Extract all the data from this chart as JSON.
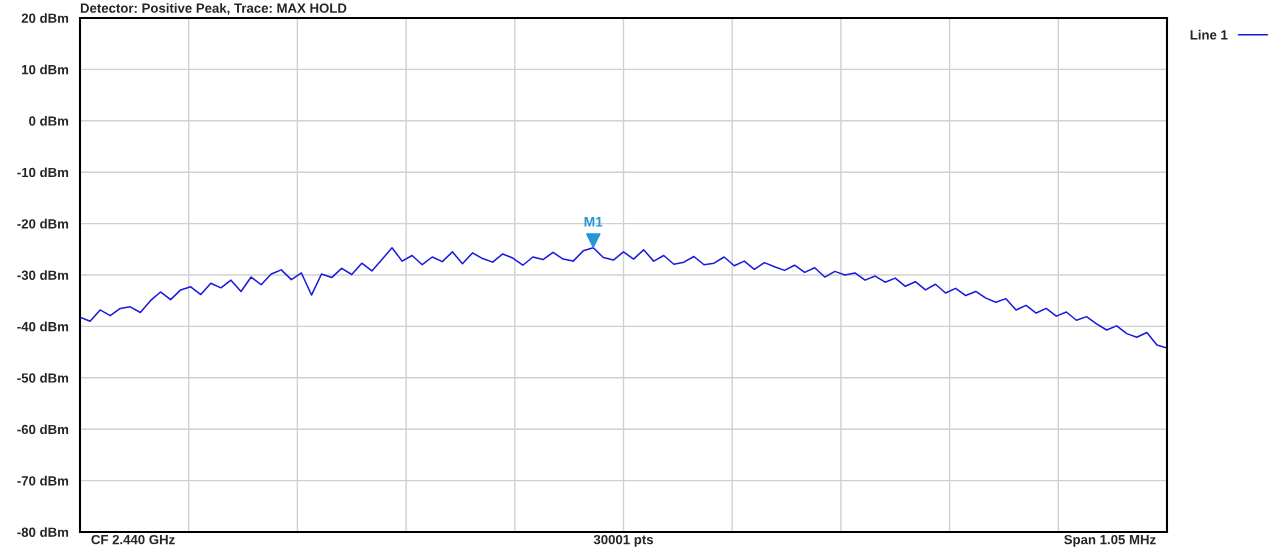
{
  "chart_data": {
    "type": "line",
    "title": "Detector: Positive Peak, Trace: MAX HOLD",
    "categories": [
      null,
      null,
      null,
      null,
      null,
      null,
      null,
      null,
      null,
      null,
      null,
      null,
      null,
      null,
      null,
      null,
      null,
      null,
      null,
      null,
      null,
      null,
      null,
      null,
      null,
      null,
      null,
      null,
      null,
      null,
      null,
      null,
      null,
      null,
      null,
      null,
      null,
      null,
      null,
      null,
      null,
      null,
      null,
      null,
      null,
      null,
      null,
      null,
      null,
      null,
      null,
      null,
      null,
      null,
      null,
      null,
      null,
      null,
      null,
      null,
      null,
      null,
      null,
      null,
      null,
      null,
      null,
      null,
      null,
      null,
      null,
      null,
      null,
      null,
      null,
      null,
      null,
      null,
      null,
      null,
      null,
      null,
      null,
      null,
      null,
      null,
      null,
      null,
      null,
      null,
      null,
      null,
      null,
      null,
      null,
      null,
      null,
      null,
      null,
      null,
      null,
      null,
      null,
      null,
      null,
      null,
      null,
      null,
      null
    ],
    "series": [
      {
        "name": "Line 1",
        "color": "#1a1adc",
        "values": [
          -38.2,
          -39.0,
          -36.8,
          -37.9,
          -36.5,
          -36.2,
          -37.3,
          -35.0,
          -33.3,
          -34.8,
          -32.9,
          -32.3,
          -33.8,
          -31.6,
          -32.5,
          -31.0,
          -33.2,
          -30.4,
          -31.9,
          -29.8,
          -29.0,
          -30.9,
          -29.6,
          -33.9,
          -29.8,
          -30.5,
          -28.7,
          -29.9,
          -27.7,
          -29.2,
          -27.0,
          -24.7,
          -27.3,
          -26.2,
          -28.0,
          -26.5,
          -27.4,
          -25.5,
          -27.8,
          -25.7,
          -26.8,
          -27.5,
          -25.9,
          -26.7,
          -28.1,
          -26.5,
          -27.0,
          -25.6,
          -26.9,
          -27.3,
          -25.3,
          -24.7,
          -26.6,
          -27.1,
          -25.5,
          -26.9,
          -25.1,
          -27.3,
          -26.2,
          -27.9,
          -27.5,
          -26.4,
          -28.0,
          -27.7,
          -26.5,
          -28.2,
          -27.3,
          -28.9,
          -27.6,
          -28.4,
          -29.1,
          -28.1,
          -29.5,
          -28.6,
          -30.4,
          -29.3,
          -30.0,
          -29.6,
          -31.0,
          -30.2,
          -31.4,
          -30.6,
          -32.2,
          -31.3,
          -32.9,
          -31.8,
          -33.5,
          -32.6,
          -34.0,
          -33.2,
          -34.5,
          -35.3,
          -34.6,
          -36.8,
          -35.9,
          -37.4,
          -36.5,
          -38.0,
          -37.2,
          -38.8,
          -38.1,
          -39.5,
          -40.7,
          -39.9,
          -41.4,
          -42.1,
          -41.2,
          -43.6,
          -44.2
        ]
      },
      {
        "name": "M1",
        "type": "scatter",
        "marker": "triangle",
        "color": "#2596d6",
        "values": [
          null,
          null,
          null,
          null,
          null,
          null,
          null,
          null,
          null,
          null,
          null,
          null,
          null,
          null,
          null,
          null,
          null,
          null,
          null,
          null,
          null,
          null,
          null,
          null,
          null,
          null,
          null,
          null,
          null,
          null,
          null,
          null,
          null,
          null,
          null,
          null,
          null,
          null,
          null,
          null,
          null,
          null,
          null,
          null,
          null,
          null,
          null,
          null,
          null,
          null,
          null,
          -23.3,
          null,
          null,
          null,
          null,
          null,
          null,
          null,
          null,
          null,
          null,
          null,
          null,
          null,
          null,
          null,
          null,
          null,
          null,
          null,
          null,
          null,
          null,
          null,
          null,
          null,
          null,
          null,
          null,
          null,
          null,
          null,
          null,
          null,
          null,
          null,
          null,
          null,
          null,
          null,
          null,
          null,
          null,
          null,
          null,
          null,
          null,
          null,
          null,
          null,
          null,
          null,
          null,
          null,
          null,
          null,
          null,
          null
        ]
      }
    ],
    "ylim": [
      -80,
      20
    ],
    "yticks": [
      {
        "value": 20,
        "label": "20 dBm"
      },
      {
        "value": 10,
        "label": "10 dBm"
      },
      {
        "value": 0,
        "label": "0 dBm"
      },
      {
        "value": -10,
        "label": "-10 dBm"
      },
      {
        "value": -20,
        "label": "-20 dBm"
      },
      {
        "value": -30,
        "label": "-30 dBm"
      },
      {
        "value": -40,
        "label": "-40 dBm"
      },
      {
        "value": -50,
        "label": "-50 dBm"
      },
      {
        "value": -60,
        "label": "-60 dBm"
      },
      {
        "value": -70,
        "label": "-70 dBm"
      },
      {
        "value": -80,
        "label": "-80 dBm"
      }
    ],
    "grid": true,
    "legend": "top right",
    "tick_labels": "y",
    "annotations": [
      "CF 2.440 GHz",
      "30001 pts",
      "Span 1.05 MHz"
    ]
  }
}
